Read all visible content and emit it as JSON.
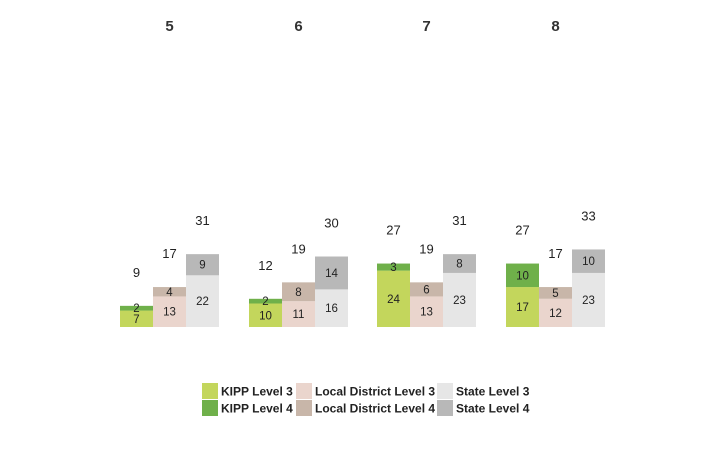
{
  "chart_data": {
    "type": "bar",
    "stacked": true,
    "groups": [
      "5",
      "6",
      "7",
      "8"
    ],
    "bars": [
      {
        "name": "KIPP",
        "segments": [
          "KIPP Level 3",
          "KIPP Level 4"
        ]
      },
      {
        "name": "Local District",
        "segments": [
          "Local District Level 3",
          "Local District Level 4"
        ]
      },
      {
        "name": "State",
        "segments": [
          "State Level 3",
          "State Level 4"
        ]
      }
    ],
    "series": [
      {
        "name": "KIPP Level 3",
        "bar": 0,
        "level": 3,
        "color": "#c3d65c",
        "values": [
          7,
          10,
          24,
          17
        ]
      },
      {
        "name": "KIPP Level 4",
        "bar": 0,
        "level": 4,
        "color": "#6fb04a",
        "values": [
          2,
          2,
          3,
          10
        ]
      },
      {
        "name": "Local District Level 3",
        "bar": 1,
        "level": 3,
        "color": "#ead5cd",
        "values": [
          13,
          11,
          13,
          12
        ]
      },
      {
        "name": "Local District Level 4",
        "bar": 1,
        "level": 4,
        "color": "#c8b6a9",
        "values": [
          4,
          8,
          6,
          5
        ]
      },
      {
        "name": "State Level 3",
        "bar": 2,
        "level": 3,
        "color": "#e6e6e6",
        "values": [
          22,
          16,
          23,
          23
        ]
      },
      {
        "name": "State Level 4",
        "bar": 2,
        "level": 4,
        "color": "#b8b8b8",
        "values": [
          9,
          14,
          8,
          10
        ]
      }
    ],
    "totals": [
      [
        9,
        17,
        31
      ],
      [
        12,
        19,
        30
      ],
      [
        27,
        19,
        31
      ],
      [
        27,
        17,
        33
      ]
    ],
    "legend_position": "bottom",
    "grid": false
  }
}
